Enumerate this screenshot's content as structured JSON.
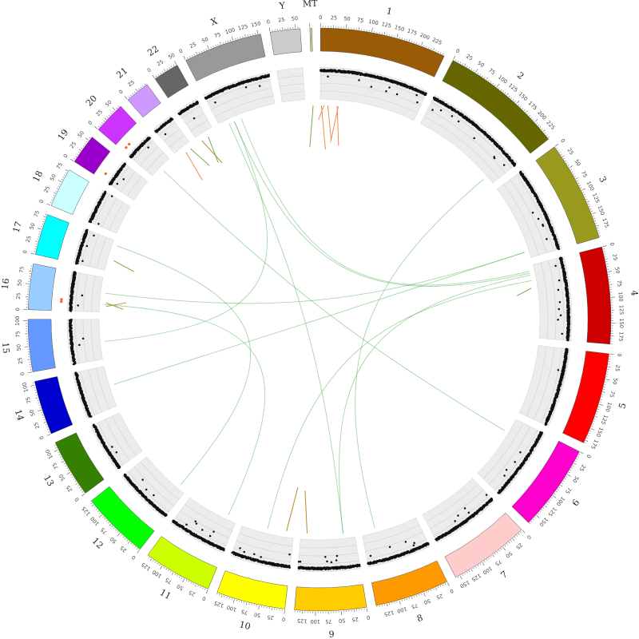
{
  "chromosomes": [
    {
      "name": "1",
      "length": 249,
      "color": "#9a5b06"
    },
    {
      "name": "2",
      "length": 243,
      "color": "#666600"
    },
    {
      "name": "3",
      "length": 198,
      "color": "#99991e"
    },
    {
      "name": "4",
      "length": 191,
      "color": "#cc0000"
    },
    {
      "name": "5",
      "length": 181,
      "color": "#ff0000"
    },
    {
      "name": "6",
      "length": 171,
      "color": "#ff00cc"
    },
    {
      "name": "7",
      "length": 159,
      "color": "#ffcccc"
    },
    {
      "name": "8",
      "length": 146,
      "color": "#ff9900"
    },
    {
      "name": "9",
      "length": 141,
      "color": "#ffcc00"
    },
    {
      "name": "10",
      "length": 136,
      "color": "#ffff00"
    },
    {
      "name": "11",
      "length": 135,
      "color": "#ccff00"
    },
    {
      "name": "12",
      "length": 134,
      "color": "#00ff00"
    },
    {
      "name": "13",
      "length": 115,
      "color": "#358000"
    },
    {
      "name": "14",
      "length": 107,
      "color": "#0000cc"
    },
    {
      "name": "15",
      "length": 103,
      "color": "#6699ff"
    },
    {
      "name": "16",
      "length": 90,
      "color": "#99ccff"
    },
    {
      "name": "17",
      "length": 81,
      "color": "#00ffff"
    },
    {
      "name": "18",
      "length": 78,
      "color": "#ccffff"
    },
    {
      "name": "19",
      "length": 59,
      "color": "#9900cc"
    },
    {
      "name": "20",
      "length": 63,
      "color": "#cc33ff"
    },
    {
      "name": "21",
      "length": 48,
      "color": "#cc99ff"
    },
    {
      "name": "22",
      "length": 51,
      "color": "#666666"
    },
    {
      "name": "X",
      "length": 155,
      "color": "#999999"
    },
    {
      "name": "Y",
      "length": 59,
      "color": "#cccccc"
    },
    {
      "name": "MT",
      "length": 2,
      "color": "#cccc99"
    }
  ],
  "tick_step": 25,
  "colors": {
    "cnv_normal": "#111111",
    "cnv_loss": "#4aa3df",
    "cnv_gain": "#ff5a1f",
    "link": "#4caf50",
    "sv_orange": "#f08a4b",
    "sv_green": "#7aa84a",
    "sv_brown": "#b58a2a"
  },
  "links": [
    {
      "from": [
        "X",
        40
      ],
      "to": [
        "4",
        20
      ]
    },
    {
      "from": [
        "X",
        25
      ],
      "to": [
        "9",
        30
      ]
    },
    {
      "from": [
        "X",
        40
      ],
      "to": [
        "15",
        45
      ]
    },
    {
      "from": [
        "3",
        180
      ],
      "to": [
        "16",
        50
      ]
    },
    {
      "from": [
        "3",
        180
      ],
      "to": [
        "14",
        55
      ]
    },
    {
      "from": [
        "2",
        220
      ],
      "to": [
        "8",
        110
      ]
    },
    {
      "from": [
        "4",
        25
      ],
      "to": [
        "9",
        30
      ]
    },
    {
      "from": [
        "4",
        40
      ],
      "to": [
        "10",
        70
      ]
    },
    {
      "from": [
        "16",
        20
      ],
      "to": [
        "11",
        25
      ]
    },
    {
      "from": [
        "X",
        60
      ],
      "to": [
        "4",
        15
      ]
    },
    {
      "from": [
        "20",
        30
      ],
      "to": [
        "6",
        40
      ]
    },
    {
      "from": [
        "17",
        70
      ],
      "to": [
        "12",
        20
      ]
    }
  ],
  "sv_segments": [
    {
      "chr": "1",
      "pos": 10,
      "color": "orange"
    },
    {
      "chr": "1",
      "pos": 3,
      "color": "orange"
    },
    {
      "chr": "MT",
      "pos": 1,
      "color": "green"
    },
    {
      "chr": "1",
      "pos": 45,
      "color": "orange"
    },
    {
      "chr": "1",
      "pos": 48,
      "color": "orange"
    },
    {
      "chr": "1",
      "pos": 20,
      "color": "orange"
    },
    {
      "chr": "21",
      "pos": 25,
      "color": "orange"
    },
    {
      "chr": "22",
      "pos": 10,
      "color": "brown"
    },
    {
      "chr": "22",
      "pos": 30,
      "color": "green"
    },
    {
      "chr": "21",
      "pos": 40,
      "color": "green"
    },
    {
      "chr": "17",
      "pos": 30,
      "color": "green"
    },
    {
      "chr": "16",
      "pos": 15,
      "color": "orange"
    },
    {
      "chr": "16",
      "pos": 25,
      "color": "green"
    },
    {
      "chr": "4",
      "pos": 60,
      "color": "green"
    },
    {
      "chr": "10",
      "pos": 20,
      "color": "brown"
    },
    {
      "chr": "9",
      "pos": 125,
      "color": "brown"
    }
  ]
}
